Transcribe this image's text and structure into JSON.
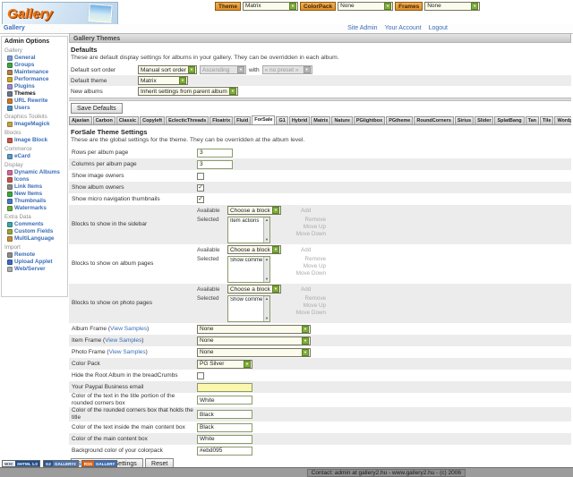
{
  "header": {
    "logo_text": "Gallery",
    "theme_label": "Theme",
    "theme_value": "Matrix",
    "colorpack_label": "ColorPack",
    "colorpack_value": "None",
    "frames_label": "Frames",
    "frames_value": "None",
    "breadcrumb": "Gallery",
    "links": [
      "Site Admin",
      "Your Account",
      "Logout"
    ]
  },
  "sidebar": {
    "title": "Admin Options",
    "sections": [
      {
        "label": "Gallery",
        "items": [
          {
            "label": "General",
            "icon": "monitor-icon"
          },
          {
            "label": "Groups",
            "icon": "groups-icon"
          },
          {
            "label": "Maintenance",
            "icon": "wrench-icon"
          },
          {
            "label": "Performance",
            "icon": "speedometer-icon"
          },
          {
            "label": "Plugins",
            "icon": "plugin-icon"
          },
          {
            "label": "Themes",
            "icon": "theme-icon",
            "active": true
          },
          {
            "label": "URL Rewrite",
            "icon": "link-rewrite-icon"
          },
          {
            "label": "Users",
            "icon": "user-icon"
          }
        ]
      },
      {
        "label": "Graphics Toolkits",
        "items": [
          {
            "label": "ImageMagick",
            "icon": "magick-icon"
          }
        ]
      },
      {
        "label": "Blocks",
        "items": [
          {
            "label": "Image Block",
            "icon": "image-block-icon"
          }
        ]
      },
      {
        "label": "Commerce",
        "items": [
          {
            "label": "eCard",
            "icon": "ecard-icon"
          }
        ]
      },
      {
        "label": "Display",
        "items": [
          {
            "label": "Dynamic Albums",
            "icon": "albums-icon"
          },
          {
            "label": "Icons",
            "icon": "icons-icon"
          },
          {
            "label": "Link Items",
            "icon": "link-icon"
          },
          {
            "label": "New Items",
            "icon": "new-items-icon"
          },
          {
            "label": "Thumbnails",
            "icon": "thumbnail-icon"
          },
          {
            "label": "Watermarks",
            "icon": "watermark-icon"
          }
        ]
      },
      {
        "label": "Extra Data",
        "items": [
          {
            "label": "Comments",
            "icon": "comment-icon"
          },
          {
            "label": "Custom Fields",
            "icon": "custom-fields-icon"
          },
          {
            "label": "MultiLanguage",
            "icon": "language-icon"
          }
        ]
      },
      {
        "label": "Import",
        "items": [
          {
            "label": "Remote",
            "icon": "remote-icon"
          },
          {
            "label": "Upload Applet",
            "icon": "upload-icon"
          },
          {
            "label": "Web/Server",
            "icon": "server-icon"
          }
        ]
      }
    ]
  },
  "main": {
    "page_title": "Gallery Themes",
    "defaults": {
      "title": "Defaults",
      "description": "These are default display settings for albums in your gallery. They can be overridden in each album.",
      "sort_label": "Default sort order",
      "sort_value": "Manual sort order",
      "direction_value": "Ascending",
      "with_label": "with",
      "preset_value": "« no preset »",
      "theme_label": "Default theme",
      "theme_value": "Matrix",
      "new_albums_label": "New albums",
      "new_albums_value": "Inherit settings from parent album",
      "save_button": "Save Defaults"
    },
    "tabs": [
      "Ajaxian",
      "Carbon",
      "Classic",
      "Copyleft",
      "EclecticThreads",
      "Floatrix",
      "Fluid",
      "ForSale",
      "G1",
      "Hybrid",
      "Matrix",
      "Nature",
      "PGlightbox",
      "PGtheme",
      "RoundCorners",
      "Sirius",
      "Slider",
      "SplatBang",
      "Tan",
      "Tile",
      "WordpressEmbedded"
    ],
    "active_tab": "ForSale",
    "theme_settings": {
      "title": "ForSale Theme Settings",
      "description": "These are the global settings for the theme. They can be overridden at the album level.",
      "blocks_widget": {
        "available_label": "Available",
        "selected_label": "Selected",
        "choose_placeholder": "Choose a block",
        "add_label": "Add",
        "remove_label": "Remove",
        "move_up_label": "Move Up",
        "move_down_label": "Move Down"
      },
      "rows": [
        {
          "type": "text",
          "label": "Rows per album page",
          "value": "3",
          "size": "s"
        },
        {
          "type": "text",
          "label": "Columns per album page",
          "value": "3",
          "size": "s"
        },
        {
          "type": "checkbox",
          "label": "Show image owners",
          "checked": false
        },
        {
          "type": "checkbox",
          "label": "Show album owners",
          "checked": true
        },
        {
          "type": "checkbox",
          "label": "Show micro navigation thumbnails",
          "checked": true
        },
        {
          "type": "blocks",
          "label": "Blocks to show in the sidebar",
          "selected_item": "Item actions"
        },
        {
          "type": "blocks",
          "label": "Blocks to show on album pages",
          "selected_item": "Show comments"
        },
        {
          "type": "blocks",
          "label": "Blocks to show on photo pages",
          "selected_item": "Show comments"
        },
        {
          "type": "select",
          "label": "Album Frame",
          "link": "View Samples",
          "value": "None",
          "size": "wide"
        },
        {
          "type": "select",
          "label": "Item Frame",
          "link": "View Samples",
          "value": "None",
          "size": "wide"
        },
        {
          "type": "select",
          "label": "Photo Frame",
          "link": "View Samples",
          "value": "None",
          "size": "wide"
        },
        {
          "type": "select",
          "label": "Color Pack",
          "value": "PG Silver",
          "size": "med"
        },
        {
          "type": "checkbox",
          "label": "Hide the Root Album in the breadCrumbs",
          "checked": false
        },
        {
          "type": "text",
          "label": "Your Paypal Business email",
          "value": "",
          "size": "m",
          "highlight": true
        },
        {
          "type": "text",
          "label": "Color of the text in the title portion of the rounded corners box",
          "value": "White",
          "size": "m"
        },
        {
          "type": "text",
          "label": "Color of the rounded corners box that holds the title",
          "value": "Black",
          "size": "m"
        },
        {
          "type": "text",
          "label": "Color of the text inside the main content box",
          "value": "Black",
          "size": "m"
        },
        {
          "type": "text",
          "label": "Color of the main content box",
          "value": "White",
          "size": "m"
        },
        {
          "type": "text",
          "label": "Background color of your colorpack",
          "value": "#ebd095",
          "size": "m"
        }
      ],
      "save_button": "Save Theme Settings",
      "reset_button": "Reset"
    }
  },
  "footer": {
    "badges": [
      {
        "left": "W3C",
        "right": "XHTML 1.0",
        "style": "xhtml"
      },
      {
        "left": "G2",
        "right": "GALLERY2",
        "style": "blue"
      },
      {
        "left": "RSS",
        "right": "GALLERY",
        "style": "orange"
      }
    ],
    "text": "Contact: admin at gallery2.hu - www.gallery2.hu - (c) 2006"
  },
  "colors": {
    "link": "#3b6db8",
    "select_arrow": "#7fae3c",
    "label_chip": "#e89b3b",
    "row_stripe": "#ececec",
    "highlight_input": "#fbf7ad",
    "footer_bar": "#9c9c9c"
  }
}
